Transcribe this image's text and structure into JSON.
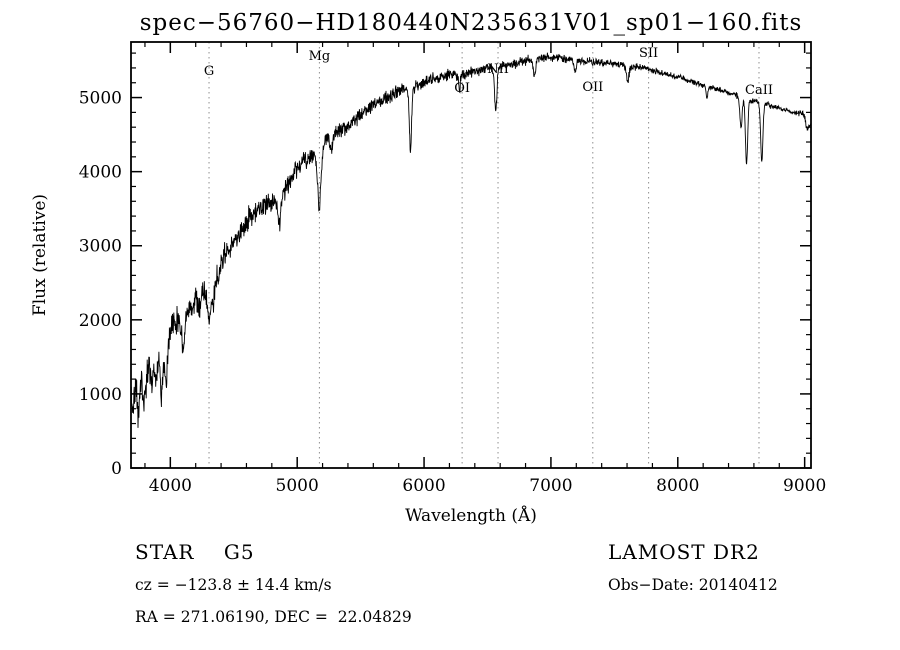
{
  "chart_data": {
    "type": "line",
    "title": "spec−56760−HD180440N235631V01_sp01−160.fits",
    "xlabel": "Wavelength (Å)",
    "ylabel": "Flux (relative)",
    "xlim": [
      3690,
      9050
    ],
    "ylim": [
      0,
      5750
    ],
    "x_ticks": [
      4000,
      5000,
      6000,
      7000,
      8000,
      9000
    ],
    "y_ticks": [
      0,
      1000,
      2000,
      3000,
      4000,
      5000
    ],
    "x_minor_step": 200,
    "y_minor_step": 200,
    "grid": false,
    "legend": "none",
    "line_color": "#000000",
    "marker_line_color": "#8f8f8f",
    "spectral_lines": [
      {
        "label": "G",
        "wavelength": 4305,
        "label_dy": 33
      },
      {
        "label": "Mg",
        "wavelength": 5175,
        "label_dy": 18
      },
      {
        "label": "OI",
        "wavelength": 6300,
        "label_dy": 50
      },
      {
        "label": "NII",
        "wavelength": 6583,
        "label_dy": 31
      },
      {
        "label": "OII",
        "wavelength": 7330,
        "label_dy": 49
      },
      {
        "label": "SII",
        "wavelength": 7770,
        "label_dy": 15
      },
      {
        "label": "CaII",
        "wavelength": 8640,
        "label_dy": 52
      }
    ],
    "envelope_points": [
      [
        3690,
        950
      ],
      [
        3710,
        800
      ],
      [
        3730,
        1100
      ],
      [
        3745,
        650
      ],
      [
        3760,
        1000
      ],
      [
        3775,
        1250
      ],
      [
        3790,
        850
      ],
      [
        3810,
        1200
      ],
      [
        3830,
        1350
      ],
      [
        3850,
        1150
      ],
      [
        3870,
        1300
      ],
      [
        3890,
        1250
      ],
      [
        3910,
        1450
      ],
      [
        3930,
        1250
      ],
      [
        3945,
        1500
      ],
      [
        3960,
        1350
      ],
      [
        3980,
        1600
      ],
      [
        4000,
        1850
      ],
      [
        4020,
        1950
      ],
      [
        4045,
        2000
      ],
      [
        4070,
        1950
      ],
      [
        4100,
        1900
      ],
      [
        4130,
        2100
      ],
      [
        4160,
        2150
      ],
      [
        4190,
        2250
      ],
      [
        4220,
        2300
      ],
      [
        4250,
        2350
      ],
      [
        4280,
        2350
      ],
      [
        4310,
        2300
      ],
      [
        4340,
        2450
      ],
      [
        4370,
        2650
      ],
      [
        4400,
        2800
      ],
      [
        4440,
        2900
      ],
      [
        4480,
        3000
      ],
      [
        4520,
        3050
      ],
      [
        4560,
        3200
      ],
      [
        4600,
        3300
      ],
      [
        4650,
        3450
      ],
      [
        4700,
        3500
      ],
      [
        4750,
        3550
      ],
      [
        4800,
        3600
      ],
      [
        4850,
        3600
      ],
      [
        4900,
        3750
      ],
      [
        4950,
        3900
      ],
      [
        5000,
        4050
      ],
      [
        5050,
        4150
      ],
      [
        5100,
        4200
      ],
      [
        5150,
        4200
      ],
      [
        5200,
        4350
      ],
      [
        5250,
        4450
      ],
      [
        5300,
        4500
      ],
      [
        5360,
        4570
      ],
      [
        5420,
        4650
      ],
      [
        5480,
        4750
      ],
      [
        5540,
        4820
      ],
      [
        5600,
        4900
      ],
      [
        5660,
        4950
      ],
      [
        5720,
        5020
      ],
      [
        5780,
        5080
      ],
      [
        5840,
        5120
      ],
      [
        5900,
        5130
      ],
      [
        5960,
        5180
      ],
      [
        6020,
        5220
      ],
      [
        6080,
        5250
      ],
      [
        6140,
        5280
      ],
      [
        6200,
        5300
      ],
      [
        6260,
        5310
      ],
      [
        6320,
        5330
      ],
      [
        6380,
        5350
      ],
      [
        6440,
        5380
      ],
      [
        6500,
        5400
      ],
      [
        6560,
        5410
      ],
      [
        6620,
        5430
      ],
      [
        6680,
        5450
      ],
      [
        6740,
        5470
      ],
      [
        6800,
        5500
      ],
      [
        6860,
        5510
      ],
      [
        6920,
        5530
      ],
      [
        6980,
        5550
      ],
      [
        7040,
        5540
      ],
      [
        7100,
        5520
      ],
      [
        7160,
        5510
      ],
      [
        7220,
        5500
      ],
      [
        7280,
        5490
      ],
      [
        7340,
        5480
      ],
      [
        7400,
        5470
      ],
      [
        7460,
        5460
      ],
      [
        7520,
        5450
      ],
      [
        7580,
        5430
      ],
      [
        7640,
        5420
      ],
      [
        7700,
        5410
      ],
      [
        7760,
        5390
      ],
      [
        7820,
        5360
      ],
      [
        7880,
        5330
      ],
      [
        7940,
        5300
      ],
      [
        8000,
        5280
      ],
      [
        8060,
        5240
      ],
      [
        8120,
        5210
      ],
      [
        8180,
        5180
      ],
      [
        8240,
        5150
      ],
      [
        8300,
        5120
      ],
      [
        8360,
        5080
      ],
      [
        8420,
        5050
      ],
      [
        8480,
        5020
      ],
      [
        8540,
        4990
      ],
      [
        8600,
        4960
      ],
      [
        8660,
        4930
      ],
      [
        8720,
        4900
      ],
      [
        8780,
        4870
      ],
      [
        8840,
        4840
      ],
      [
        8900,
        4810
      ],
      [
        8950,
        4790
      ],
      [
        9000,
        4780
      ],
      [
        9030,
        4700
      ],
      [
        9050,
        4620
      ]
    ],
    "absorption_features": [
      {
        "x": 3933,
        "depth": 350,
        "width": 9
      },
      {
        "x": 3968,
        "depth": 300,
        "width": 9
      },
      {
        "x": 4101,
        "depth": 330,
        "width": 10
      },
      {
        "x": 4226,
        "depth": 180,
        "width": 7
      },
      {
        "x": 4305,
        "depth": 270,
        "width": 13
      },
      {
        "x": 4340,
        "depth": 240,
        "width": 10
      },
      {
        "x": 4383,
        "depth": 170,
        "width": 8
      },
      {
        "x": 4861,
        "depth": 380,
        "width": 10
      },
      {
        "x": 5175,
        "depth": 750,
        "width": 13
      },
      {
        "x": 5270,
        "depth": 200,
        "width": 9
      },
      {
        "x": 5893,
        "depth": 850,
        "width": 9
      },
      {
        "x": 6280,
        "depth": 240,
        "width": 6
      },
      {
        "x": 6565,
        "depth": 570,
        "width": 9
      },
      {
        "x": 6870,
        "depth": 220,
        "width": 9
      },
      {
        "x": 7190,
        "depth": 140,
        "width": 9
      },
      {
        "x": 7605,
        "depth": 210,
        "width": 10
      },
      {
        "x": 8230,
        "depth": 140,
        "width": 8
      },
      {
        "x": 8498,
        "depth": 420,
        "width": 9
      },
      {
        "x": 8542,
        "depth": 880,
        "width": 9
      },
      {
        "x": 8662,
        "depth": 800,
        "width": 9
      },
      {
        "x": 9020,
        "depth": 150,
        "width": 12
      }
    ],
    "noise": {
      "blue": 300,
      "red": 50,
      "falloff": 2.2,
      "seed": 77
    }
  },
  "annotations": {
    "star_class": "STAR    G5",
    "survey": "LAMOST DR2",
    "cz": "cz = −123.8 ± 14.4 km/s",
    "obs_date": "Obs−Date: 20140412",
    "ra_dec": "RA = 271.06190, DEC =  22.04829"
  }
}
